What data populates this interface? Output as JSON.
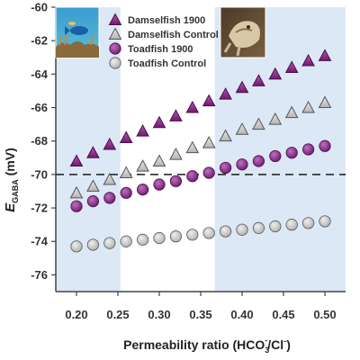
{
  "chart_data": {
    "type": "scatter",
    "xlabel_parts": [
      "Permeability ratio (HCO",
      "3",
      "-",
      "/Cl",
      "-",
      ")"
    ],
    "ylabel_parts": [
      "E",
      "GABA",
      " (mV)"
    ],
    "xlim": [
      0.175,
      0.525
    ],
    "ylim": [
      -77,
      -60
    ],
    "xticks": [
      "0.20",
      "0.25",
      "0.30",
      "0.35",
      "0.40",
      "0.45",
      "0.50"
    ],
    "yticks": [
      "-76",
      "-74",
      "-72",
      "-70",
      "-68",
      "-66",
      "-64",
      "-62",
      "-60"
    ],
    "reference_line_y": -70,
    "shaded_regions": [
      [
        0.175,
        0.253
      ],
      [
        0.367,
        0.525
      ]
    ],
    "x": [
      0.2,
      0.22,
      0.24,
      0.26,
      0.28,
      0.3,
      0.32,
      0.34,
      0.36,
      0.38,
      0.4,
      0.42,
      0.44,
      0.46,
      0.48,
      0.5
    ],
    "series": [
      {
        "name": "Damselfish 1900",
        "marker": "triangle",
        "color": "#8e2a8e",
        "values": [
          -69.2,
          -68.7,
          -68.2,
          -67.8,
          -67.4,
          -66.9,
          -66.5,
          -66.0,
          -65.6,
          -65.2,
          -64.8,
          -64.4,
          -64.0,
          -63.6,
          -63.2,
          -62.9
        ]
      },
      {
        "name": "Damselfish Control",
        "marker": "triangle",
        "color": "#c8c8c8",
        "values": [
          -71.1,
          -70.7,
          -70.3,
          -69.9,
          -69.5,
          -69.2,
          -68.8,
          -68.4,
          -68.1,
          -67.7,
          -67.3,
          -67.0,
          -66.7,
          -66.3,
          -66.0,
          -65.7
        ]
      },
      {
        "name": "Toadfish 1900",
        "marker": "circle",
        "color": "#8e2a8e",
        "values": [
          -71.9,
          -71.6,
          -71.4,
          -71.1,
          -70.9,
          -70.6,
          -70.4,
          -70.1,
          -69.9,
          -69.6,
          -69.4,
          -69.2,
          -68.9,
          -68.7,
          -68.5,
          -68.3
        ]
      },
      {
        "name": "Toadfish Control",
        "marker": "circle",
        "color": "#c8c8c8",
        "values": [
          -74.3,
          -74.2,
          -74.1,
          -74.0,
          -73.9,
          -73.8,
          -73.7,
          -73.6,
          -73.5,
          -73.4,
          -73.3,
          -73.2,
          -73.1,
          -73.0,
          -72.9,
          -72.8
        ]
      }
    ],
    "legend": [
      "Damselfish 1900",
      "Damselfish Control",
      "Toadfish 1900",
      "Toadfish Control"
    ],
    "legend_position": "top-center",
    "images": [
      {
        "name": "damselfish-photo",
        "description": "coral reef fish"
      },
      {
        "name": "toadfish-photo",
        "description": "toadfish"
      }
    ],
    "colors": {
      "shade": "#dce8f5",
      "plot_background": "#ffffff",
      "axis": "#444444",
      "reference_line": "#1a1a1a"
    }
  }
}
